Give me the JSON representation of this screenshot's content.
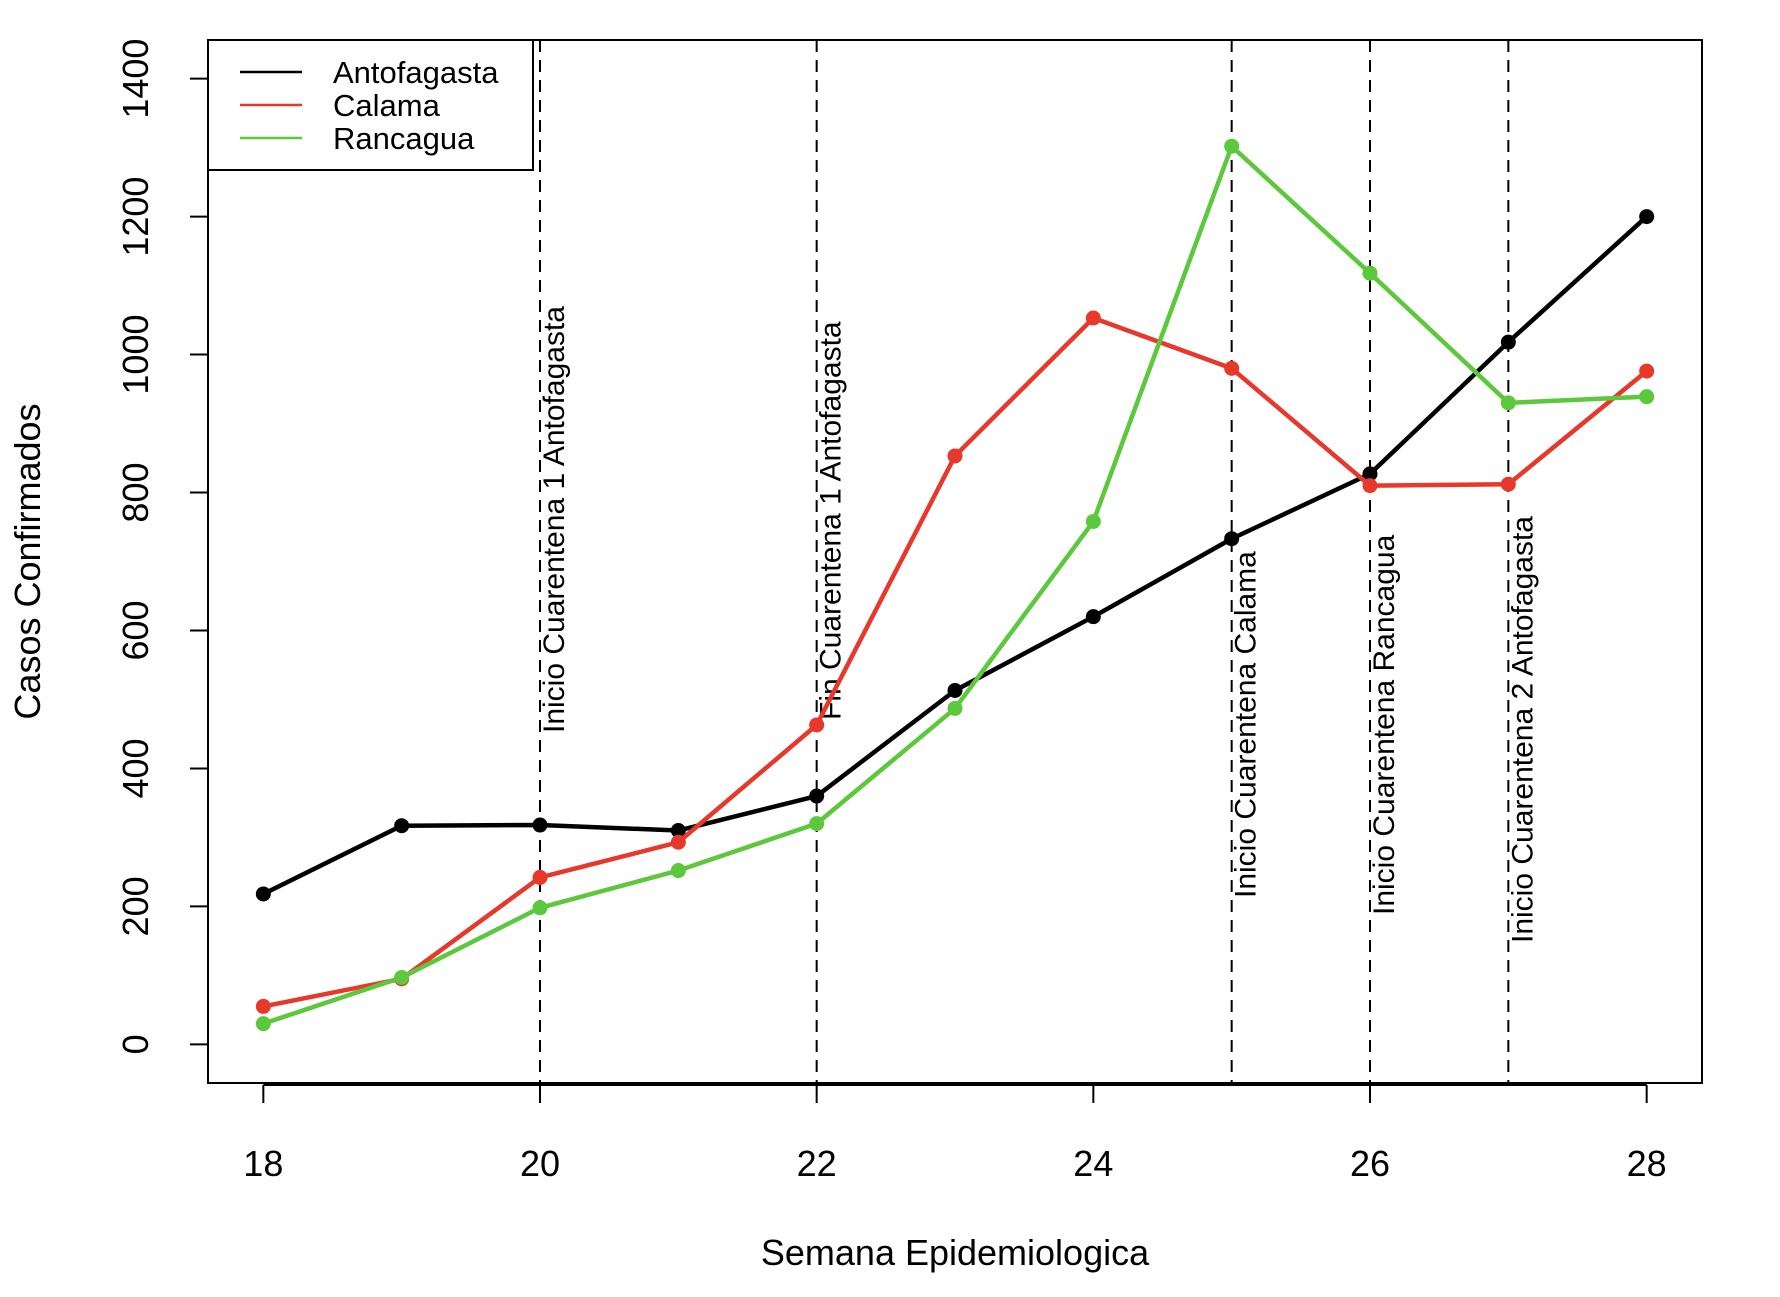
{
  "chart_data": {
    "type": "line",
    "title": "",
    "xlabel": "Semana Epidemiologica",
    "ylabel": "Casos Confirmados",
    "xlim": [
      17.6,
      28.4
    ],
    "ylim": [
      -56,
      1456
    ],
    "x_ticks": [
      18,
      20,
      22,
      24,
      26,
      28
    ],
    "y_ticks": [
      0,
      200,
      400,
      600,
      800,
      1000,
      1200,
      1400
    ],
    "x": [
      18,
      19,
      20,
      21,
      22,
      23,
      24,
      25,
      26,
      27,
      28
    ],
    "series": [
      {
        "name": "Antofagasta",
        "color": "#000000",
        "values": [
          218,
          317,
          318,
          310,
          360,
          513,
          620,
          733,
          827,
          1018,
          1200
        ]
      },
      {
        "name": "Calama",
        "color": "#e8382c",
        "values": [
          55,
          95,
          242,
          293,
          463,
          853,
          1053,
          980,
          810,
          812,
          976
        ]
      },
      {
        "name": "Rancagua",
        "color": "#5cc83b",
        "values": [
          30,
          97,
          198,
          252,
          320,
          487,
          758,
          1302,
          1118,
          930,
          939
        ]
      }
    ],
    "legend": {
      "position": "top-left",
      "entries": [
        "Antofagasta",
        "Calama",
        "Rancagua"
      ]
    },
    "annotations": [
      {
        "x": 20,
        "label": "Inicio Cuarentena 1 Antofagasta",
        "line": "dashed"
      },
      {
        "x": 22,
        "label": "Fin Cuarentena 1 Antofagasta",
        "line": "dashed"
      },
      {
        "x": 25,
        "label": "Inicio Cuarentena Calama",
        "line": "dashed"
      },
      {
        "x": 26,
        "label": "Inicio Cuarentena Rancagua",
        "line": "dashed"
      },
      {
        "x": 27,
        "label": "Inicio Cuarentena 2 Antofagasta",
        "line": "dashed"
      }
    ],
    "grid": false
  }
}
